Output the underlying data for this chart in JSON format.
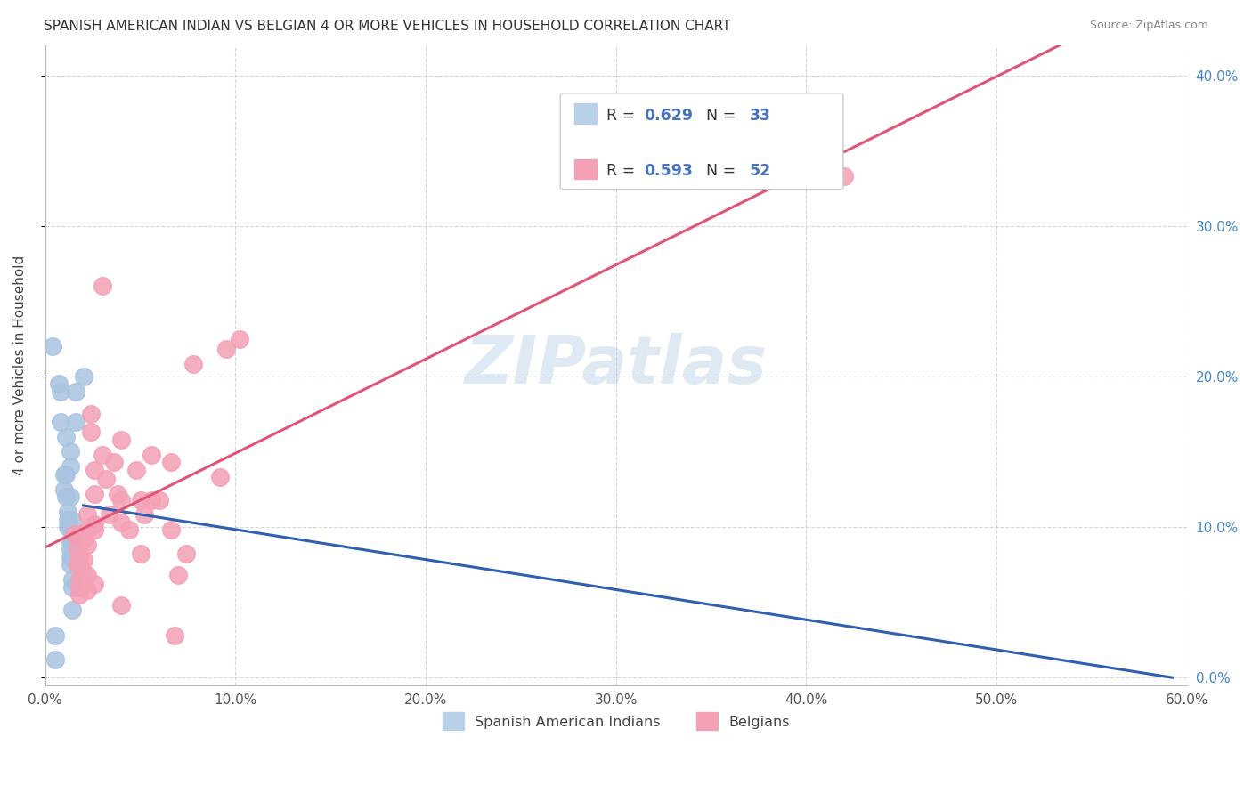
{
  "title": "SPANISH AMERICAN INDIAN VS BELGIAN 4 OR MORE VEHICLES IN HOUSEHOLD CORRELATION CHART",
  "source": "Source: ZipAtlas.com",
  "ylabel": "4 or more Vehicles in Household",
  "xlim": [
    0.0,
    0.6
  ],
  "ylim": [
    -0.005,
    0.42
  ],
  "x_tick_vals": [
    0.0,
    0.1,
    0.2,
    0.3,
    0.4,
    0.5,
    0.6
  ],
  "x_tick_labels": [
    "0.0%",
    "10.0%",
    "20.0%",
    "30.0%",
    "40.0%",
    "50.0%",
    "60.0%"
  ],
  "y_tick_vals": [
    0.0,
    0.1,
    0.2,
    0.3,
    0.4
  ],
  "y_tick_labels": [
    "0.0%",
    "10.0%",
    "20.0%",
    "30.0%",
    "40.0%"
  ],
  "legend_bottom1": "Spanish American Indians",
  "legend_bottom2": "Belgians",
  "watermark": "ZIPatlas",
  "blue_color": "#a8c4e0",
  "pink_color": "#f4a0b5",
  "blue_line_color": "#3060b0",
  "pink_line_color": "#e05575",
  "blue_dots": [
    [
      0.004,
      0.22
    ],
    [
      0.007,
      0.195
    ],
    [
      0.008,
      0.19
    ],
    [
      0.008,
      0.17
    ],
    [
      0.01,
      0.135
    ],
    [
      0.01,
      0.125
    ],
    [
      0.011,
      0.16
    ],
    [
      0.011,
      0.135
    ],
    [
      0.011,
      0.12
    ],
    [
      0.012,
      0.11
    ],
    [
      0.012,
      0.105
    ],
    [
      0.012,
      0.1
    ],
    [
      0.013,
      0.15
    ],
    [
      0.013,
      0.14
    ],
    [
      0.013,
      0.12
    ],
    [
      0.013,
      0.1
    ],
    [
      0.013,
      0.09
    ],
    [
      0.013,
      0.085
    ],
    [
      0.013,
      0.08
    ],
    [
      0.013,
      0.075
    ],
    [
      0.014,
      0.105
    ],
    [
      0.014,
      0.095
    ],
    [
      0.014,
      0.09
    ],
    [
      0.014,
      0.08
    ],
    [
      0.014,
      0.065
    ],
    [
      0.014,
      0.06
    ],
    [
      0.014,
      0.045
    ],
    [
      0.015,
      0.08
    ],
    [
      0.016,
      0.19
    ],
    [
      0.016,
      0.17
    ],
    [
      0.02,
      0.2
    ],
    [
      0.005,
      0.028
    ],
    [
      0.005,
      0.012
    ]
  ],
  "pink_dots": [
    [
      0.015,
      0.095
    ],
    [
      0.017,
      0.085
    ],
    [
      0.017,
      0.075
    ],
    [
      0.018,
      0.095
    ],
    [
      0.018,
      0.08
    ],
    [
      0.018,
      0.075
    ],
    [
      0.018,
      0.065
    ],
    [
      0.018,
      0.06
    ],
    [
      0.018,
      0.055
    ],
    [
      0.02,
      0.092
    ],
    [
      0.02,
      0.078
    ],
    [
      0.02,
      0.068
    ],
    [
      0.022,
      0.108
    ],
    [
      0.022,
      0.098
    ],
    [
      0.022,
      0.088
    ],
    [
      0.022,
      0.068
    ],
    [
      0.022,
      0.058
    ],
    [
      0.024,
      0.175
    ],
    [
      0.024,
      0.163
    ],
    [
      0.026,
      0.138
    ],
    [
      0.026,
      0.122
    ],
    [
      0.026,
      0.102
    ],
    [
      0.026,
      0.098
    ],
    [
      0.026,
      0.062
    ],
    [
      0.03,
      0.26
    ],
    [
      0.03,
      0.148
    ],
    [
      0.032,
      0.132
    ],
    [
      0.034,
      0.108
    ],
    [
      0.036,
      0.143
    ],
    [
      0.038,
      0.122
    ],
    [
      0.04,
      0.158
    ],
    [
      0.04,
      0.118
    ],
    [
      0.04,
      0.103
    ],
    [
      0.04,
      0.048
    ],
    [
      0.044,
      0.098
    ],
    [
      0.048,
      0.138
    ],
    [
      0.05,
      0.118
    ],
    [
      0.05,
      0.082
    ],
    [
      0.052,
      0.108
    ],
    [
      0.056,
      0.148
    ],
    [
      0.056,
      0.118
    ],
    [
      0.06,
      0.118
    ],
    [
      0.066,
      0.143
    ],
    [
      0.066,
      0.098
    ],
    [
      0.068,
      0.028
    ],
    [
      0.07,
      0.068
    ],
    [
      0.074,
      0.082
    ],
    [
      0.078,
      0.208
    ],
    [
      0.092,
      0.133
    ],
    [
      0.095,
      0.218
    ],
    [
      0.102,
      0.225
    ],
    [
      0.42,
      0.333
    ]
  ]
}
